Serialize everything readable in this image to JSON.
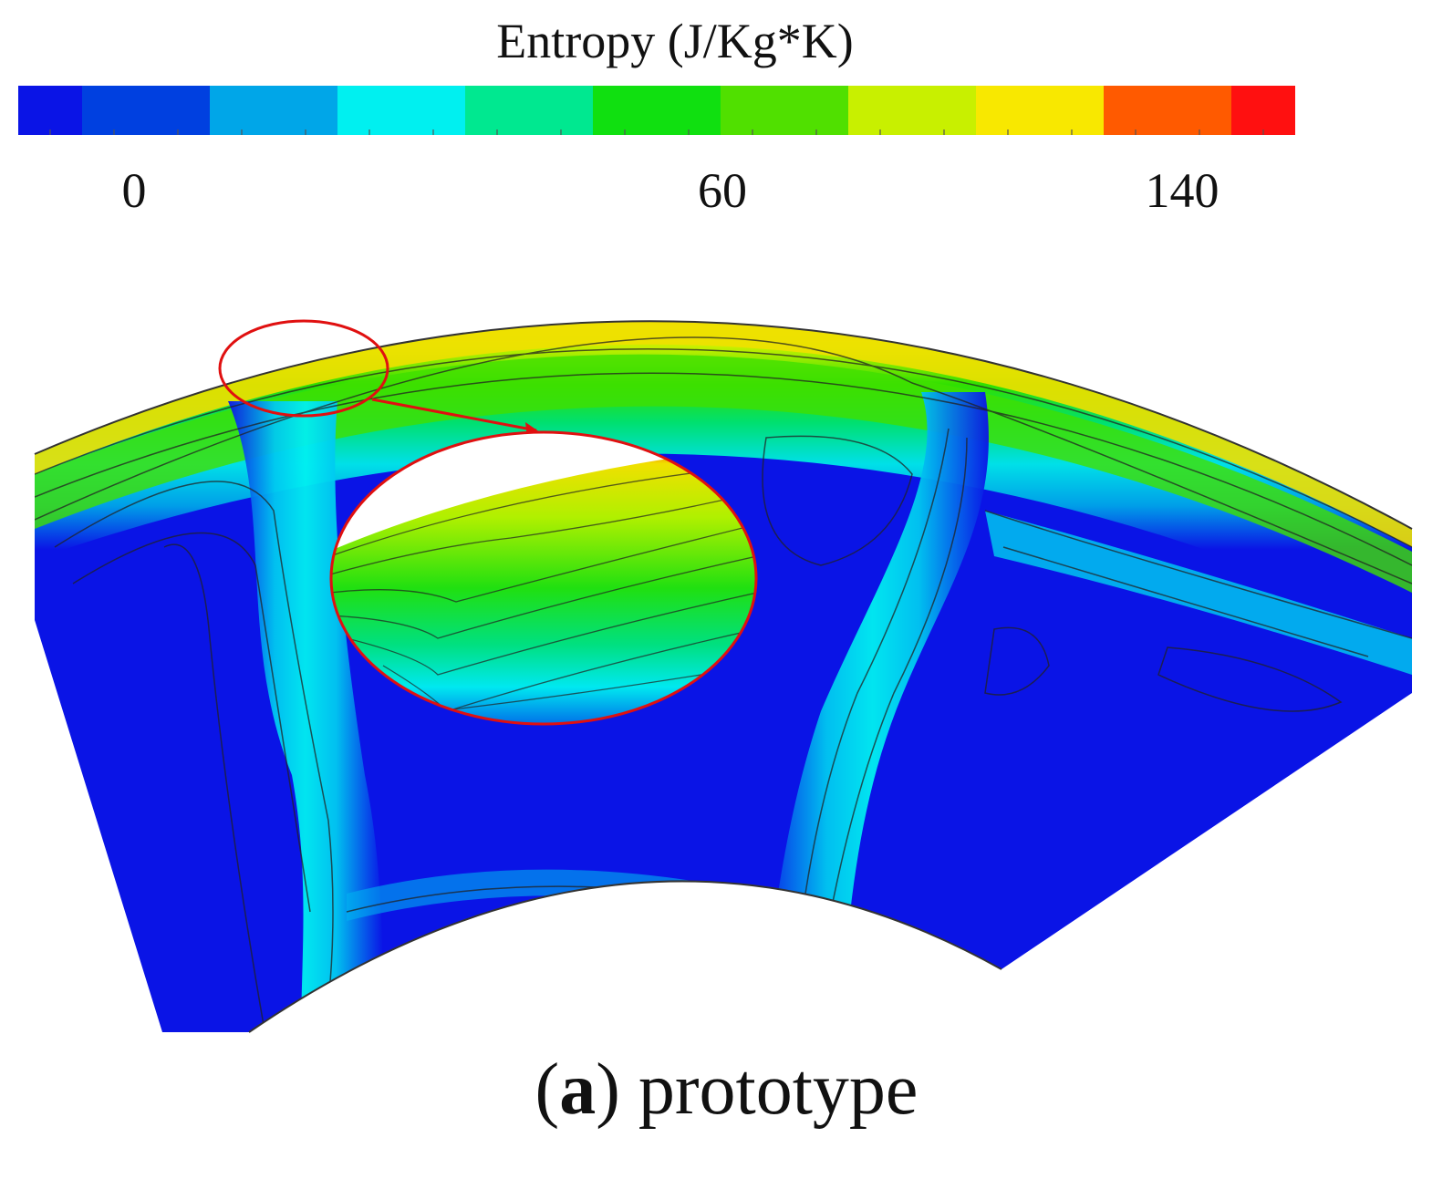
{
  "legend": {
    "title": "Entropy (J/Kg*K)",
    "tick_labels": [
      "0",
      "60",
      "140"
    ],
    "colors": [
      "#0a14e6",
      "#0040e0",
      "#00a6e8",
      "#00f0f0",
      "#00e890",
      "#10e010",
      "#50e000",
      "#c8f000",
      "#f8e800",
      "#ff5a00",
      "#ff1010"
    ]
  },
  "caption": {
    "letter": "a",
    "text": "prototype"
  }
}
